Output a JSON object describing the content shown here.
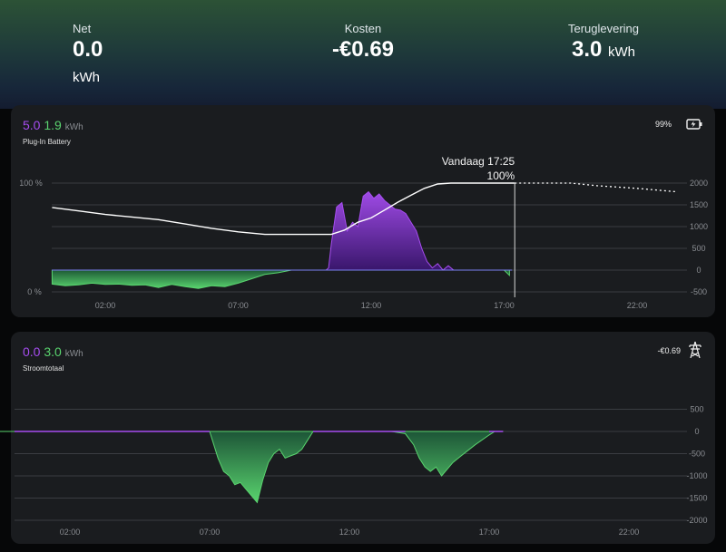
{
  "summary": {
    "net": {
      "label": "Net",
      "value": "0.0",
      "unit": "kWh"
    },
    "costs": {
      "label": "Kosten",
      "value": "-€0.69"
    },
    "return": {
      "label": "Teruglevering",
      "value": "3.0",
      "unit": "kWh"
    }
  },
  "battery_card": {
    "value_in": "5.0",
    "value_out": "1.9",
    "unit": "kWh",
    "title": "Plug-In Battery",
    "soc": "99%",
    "tooltip_time": "Vandaag 17:25",
    "tooltip_value": "100%"
  },
  "power_card": {
    "value_in": "0.0",
    "value_out": "3.0",
    "unit": "kWh",
    "title": "Stroomtotaal",
    "cost": "-€0.69"
  },
  "colors": {
    "import": "#a64df0",
    "export": "#59d36e",
    "soc_line": "#ffffff"
  },
  "chart_data": [
    {
      "type": "area",
      "title": "Plug-In Battery",
      "x_ticks": [
        "02:00",
        "07:00",
        "12:00",
        "17:00",
        "22:00"
      ],
      "left_axis": {
        "ticks": [
          "0 %",
          "100 %"
        ],
        "ylim": [
          0,
          100
        ]
      },
      "right_axis": {
        "ticks": [
          "2000",
          "1500",
          "1000",
          "500",
          "0",
          "-500"
        ],
        "ylim": [
          -500,
          2000
        ]
      },
      "series": [
        {
          "name": "",
          "kind": "soc_line",
          "x": [
            0,
            1,
            2,
            3,
            4,
            5,
            6,
            7,
            8,
            9,
            10,
            10.5,
            11,
            11.5,
            12,
            12.5,
            13,
            13.5,
            14,
            14.5,
            15,
            16,
            17,
            17.4
          ],
          "y": [
            72,
            68,
            64,
            61,
            58,
            53,
            48,
            44,
            41,
            41,
            41,
            41,
            46,
            55,
            60,
            69,
            78,
            86,
            94,
            99,
            100,
            100,
            100,
            100
          ]
        },
        {
          "name": "",
          "kind": "soc_forecast",
          "x": [
            17.4,
            19.5,
            20.5,
            22,
            23.5
          ],
          "y": [
            100,
            100,
            97,
            94,
            90
          ]
        },
        {
          "name": "",
          "kind": "battery_power",
          "x": [
            0,
            0.5,
            1,
            1.5,
            2,
            2.5,
            3,
            3.5,
            4,
            4.5,
            5,
            5.5,
            6,
            6.5,
            7,
            7.5,
            8,
            8.5,
            9,
            9.5,
            10,
            10.3,
            10.4,
            10.5,
            10.7,
            10.9,
            11.1,
            11.3,
            11.5,
            11.7,
            11.9,
            12.1,
            12.3,
            12.5,
            12.7,
            12.9,
            13.1,
            13.3,
            13.5,
            13.7,
            13.9,
            14.1,
            14.3,
            14.5,
            14.7,
            14.9,
            15.1,
            15.3,
            16,
            17,
            17.2
          ],
          "y": [
            -320,
            -360,
            -340,
            -300,
            -330,
            -320,
            -350,
            -340,
            -400,
            -330,
            -380,
            -420,
            -360,
            -380,
            -300,
            -200,
            -100,
            -60,
            0,
            0,
            0,
            0,
            50,
            600,
            1450,
            1550,
            900,
            1100,
            1000,
            1700,
            1800,
            1650,
            1750,
            1600,
            1500,
            1400,
            1380,
            1300,
            1100,
            900,
            500,
            200,
            50,
            150,
            0,
            100,
            0,
            0,
            0,
            0,
            -120
          ]
        }
      ]
    },
    {
      "type": "area",
      "title": "Stroomtotaal",
      "x_ticks": [
        "02:00",
        "07:00",
        "12:00",
        "17:00",
        "22:00"
      ],
      "y_ticks": [
        "500",
        "0",
        "-500",
        "-1000",
        "-1500",
        "-2000"
      ],
      "ylim": [
        -2000,
        500
      ],
      "series": [
        {
          "name": "",
          "kind": "grid_power",
          "x": [
            -1.5,
            7,
            7.1,
            7.3,
            7.5,
            7.7,
            7.9,
            8.1,
            8.3,
            8.5,
            8.7,
            8.9,
            9.1,
            9.3,
            9.5,
            9.7,
            9.9,
            10.1,
            10.3,
            10.5,
            10.7,
            11,
            12,
            13.5,
            14,
            14.3,
            14.5,
            14.7,
            14.9,
            15.1,
            15.3,
            15.5,
            15.7,
            16,
            16.5,
            17,
            17.2,
            17.5
          ],
          "y": [
            0,
            0,
            -200,
            -600,
            -900,
            -1000,
            -1200,
            -1150,
            -1300,
            -1450,
            -1600,
            -1100,
            -700,
            -500,
            -400,
            -600,
            -550,
            -500,
            -400,
            -200,
            0,
            0,
            0,
            0,
            -50,
            -300,
            -600,
            -800,
            -900,
            -800,
            -1000,
            -850,
            -700,
            -550,
            -300,
            -80,
            50,
            0
          ]
        }
      ]
    }
  ]
}
